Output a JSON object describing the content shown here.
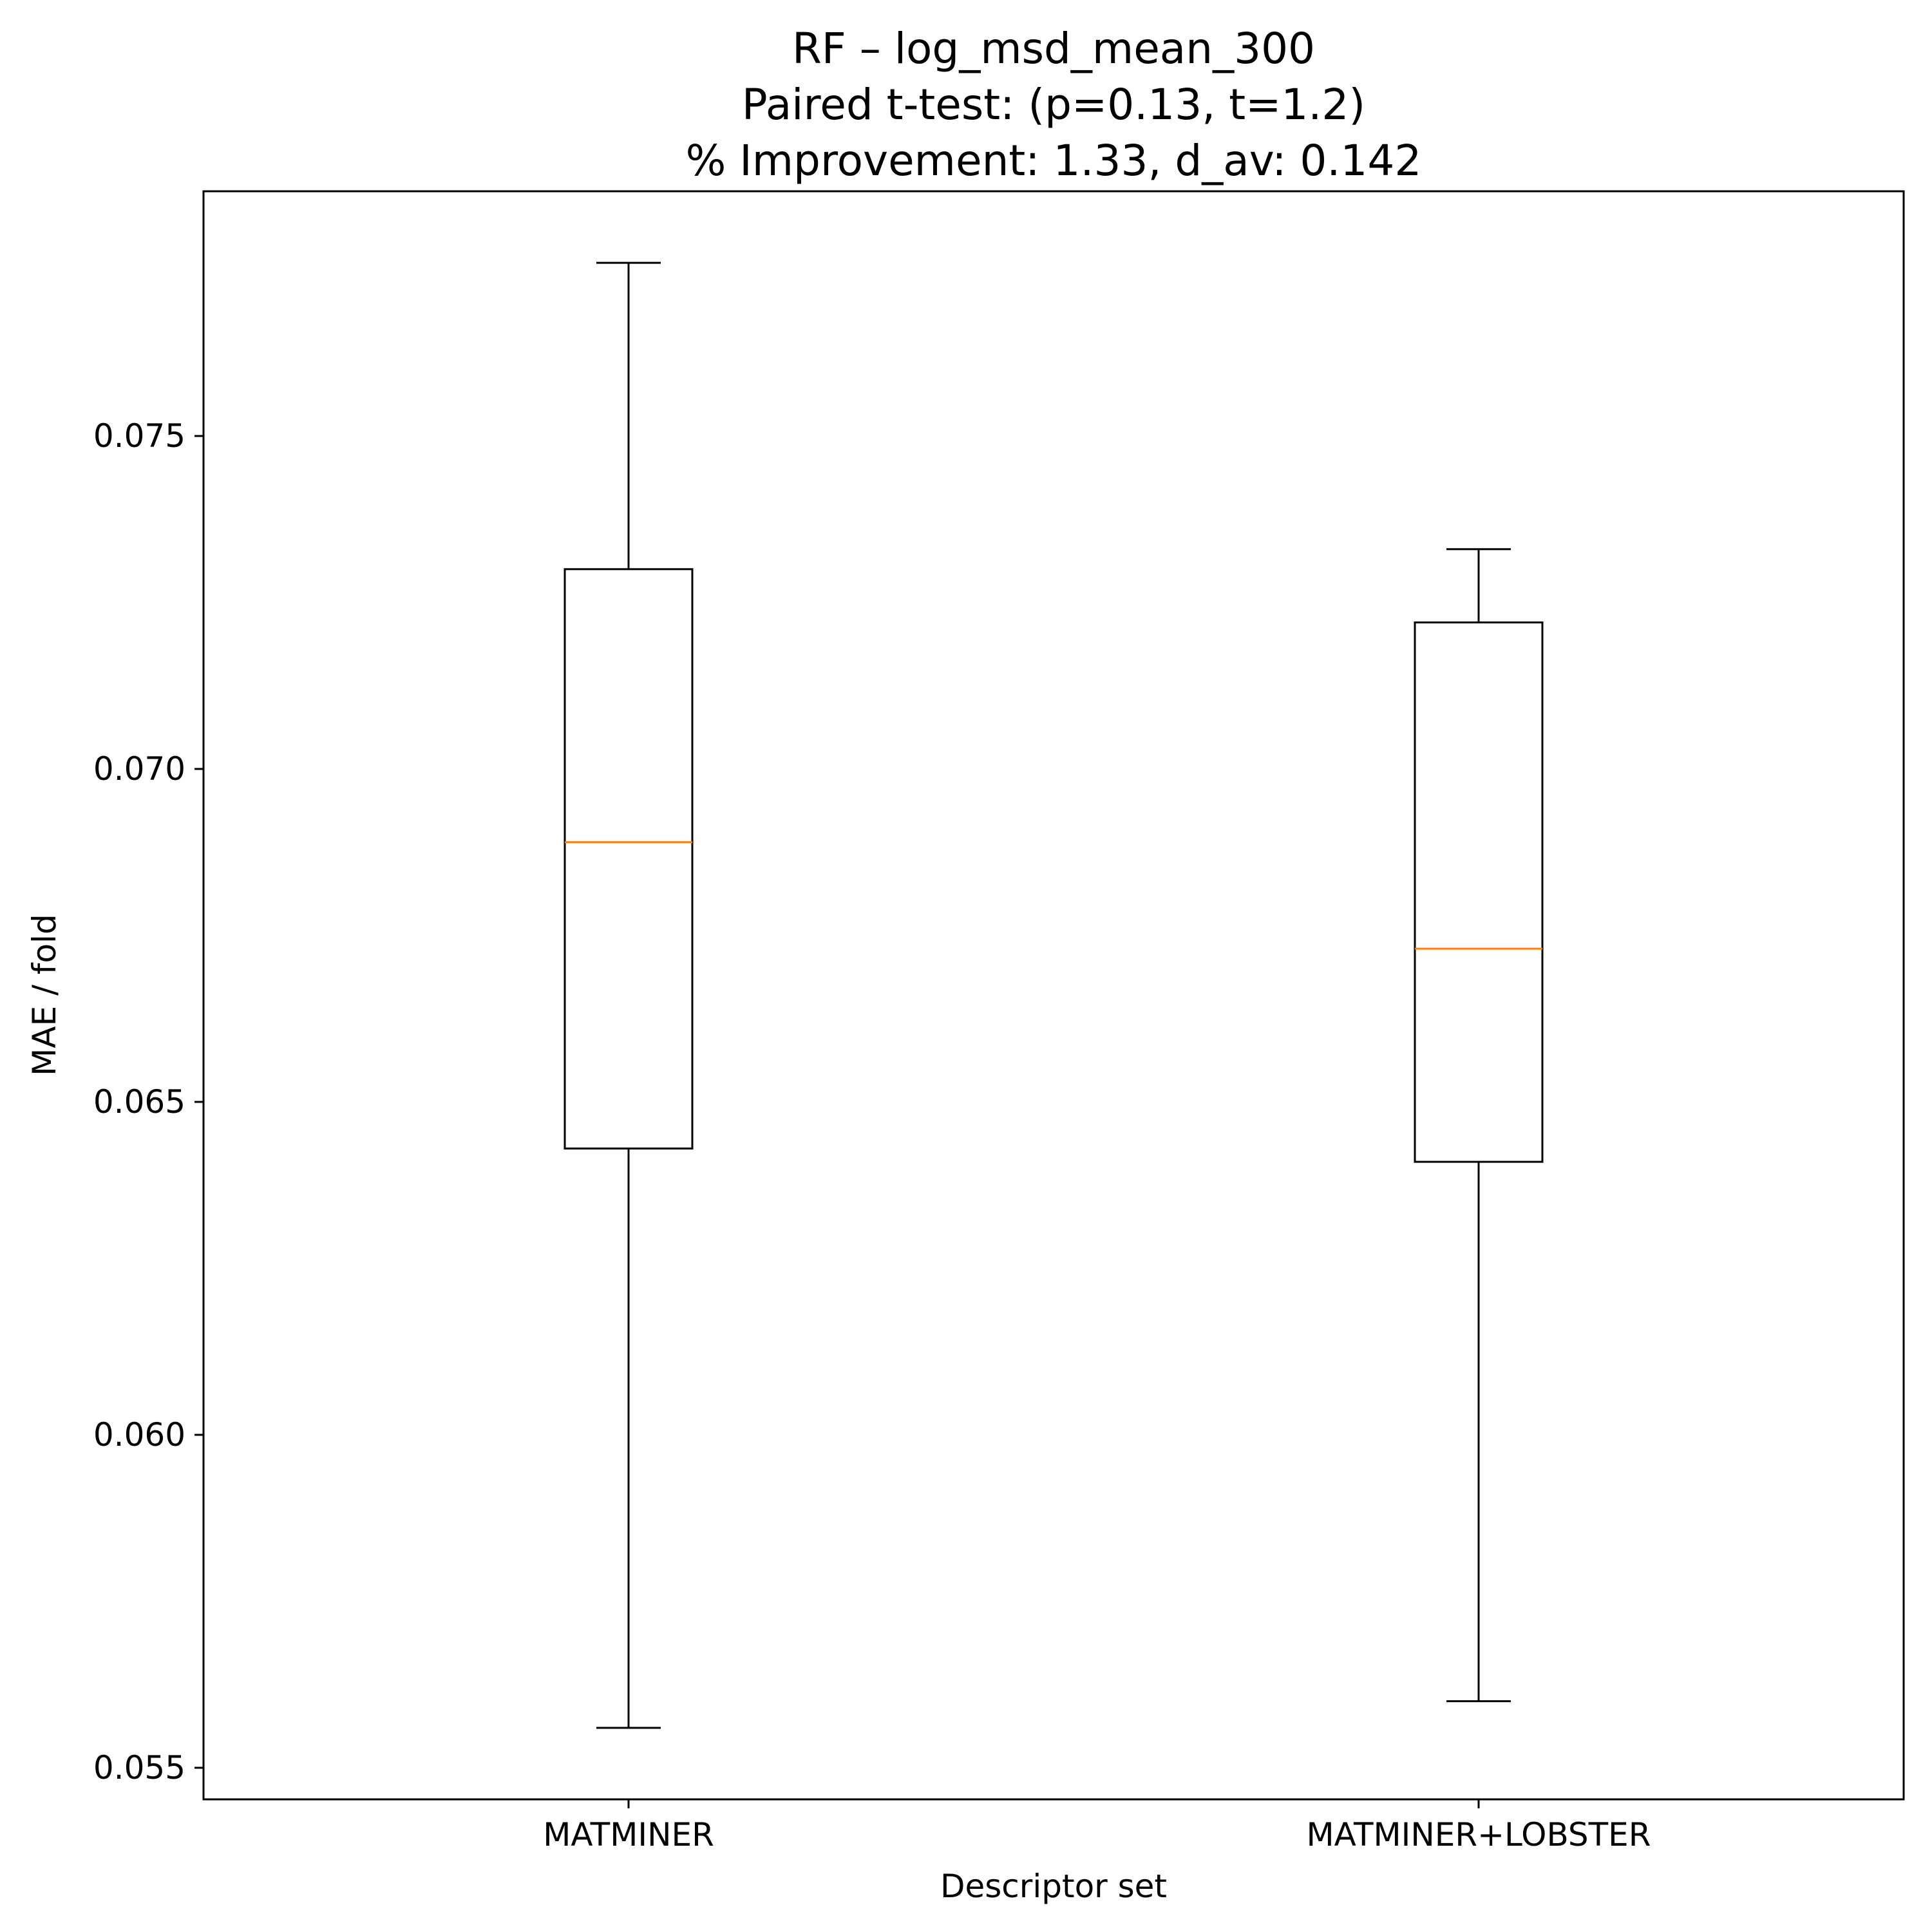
{
  "chart_data": {
    "type": "box",
    "title": [
      "RF – log_msd_mean_300",
      "Paired t-test: (p=0.13, t=1.2)",
      "% Improvement: 1.33, d_av: 0.142"
    ],
    "xlabel": "Descriptor set",
    "ylabel": "MAE / fold",
    "categories": [
      "MATMINER",
      "MATMINER+LOBSTER"
    ],
    "yticks": [
      "0.055",
      "0.060",
      "0.065",
      "0.070",
      "0.075"
    ],
    "ylim": [
      0.0545,
      0.0786
    ],
    "median_color": "#ff7f0e",
    "series": [
      {
        "name": "MATMINER",
        "whisker_low": 0.0556,
        "q1": 0.0643,
        "median": 0.0689,
        "q3": 0.073,
        "whisker_high": 0.0776
      },
      {
        "name": "MATMINER+LOBSTER",
        "whisker_low": 0.056,
        "q1": 0.0641,
        "median": 0.0673,
        "q3": 0.0722,
        "whisker_high": 0.0733
      }
    ]
  }
}
